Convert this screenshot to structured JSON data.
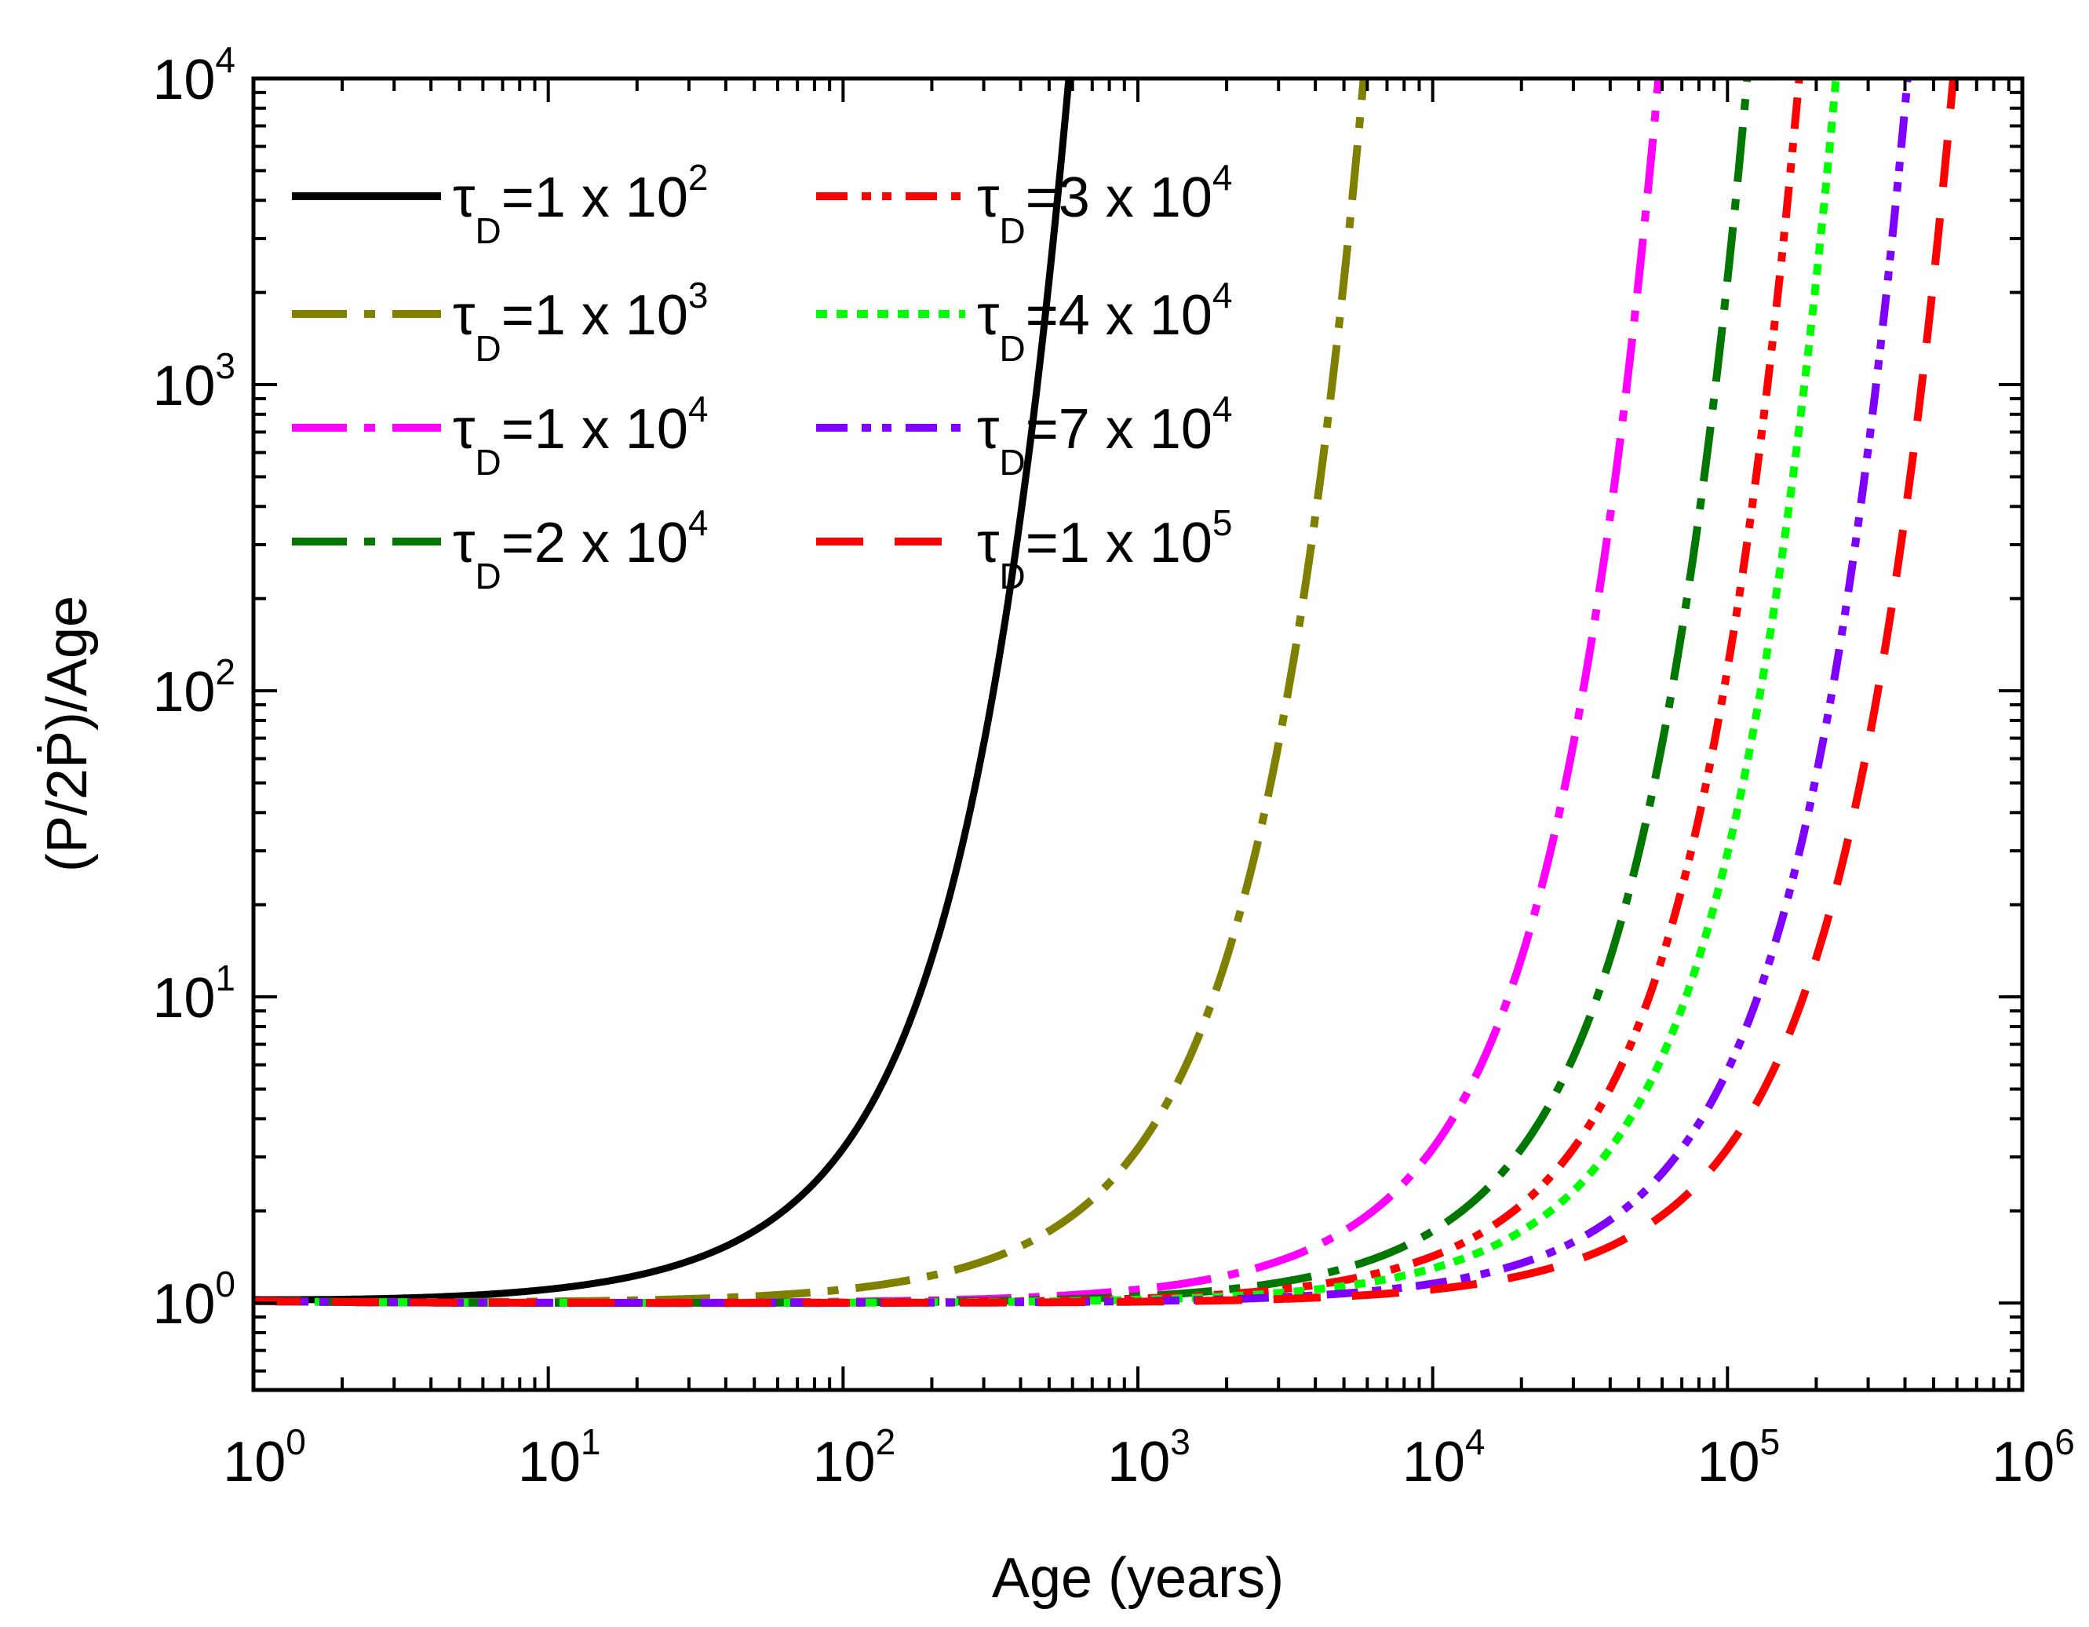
{
  "chart_data": {
    "type": "line",
    "title": "",
    "xlabel": "Age (years)",
    "ylabel": "(P/2Ṗ)/Age",
    "xscale": "log",
    "yscale": "log",
    "xlim": [
      1,
      1000000
    ],
    "ylim": [
      0.52,
      10000
    ],
    "grid": false,
    "legend_position": "top-left",
    "x_ticks": [
      {
        "value": 1,
        "base": "10",
        "exp": "0"
      },
      {
        "value": 10,
        "base": "10",
        "exp": "1"
      },
      {
        "value": 100,
        "base": "10",
        "exp": "2"
      },
      {
        "value": 1000,
        "base": "10",
        "exp": "3"
      },
      {
        "value": 10000,
        "base": "10",
        "exp": "4"
      },
      {
        "value": 100000,
        "base": "10",
        "exp": "5"
      },
      {
        "value": 1000000,
        "base": "10",
        "exp": "6"
      }
    ],
    "y_ticks": [
      {
        "value": 1,
        "base": "10",
        "exp": "0"
      },
      {
        "value": 10,
        "base": "10",
        "exp": "1"
      },
      {
        "value": 100,
        "base": "10",
        "exp": "2"
      },
      {
        "value": 1000,
        "base": "10",
        "exp": "3"
      },
      {
        "value": 10000,
        "base": "10",
        "exp": "4"
      }
    ],
    "series": [
      {
        "name": "τD=1 x 10^2",
        "tau": 100,
        "label_main": "τ",
        "label_sub": "D",
        "label_mid": "=1 x 10",
        "label_sup": "2",
        "color": "#000000",
        "dash": ""
      },
      {
        "name": "τD=1 x 10^3",
        "tau": 1000,
        "label_main": "τ",
        "label_sub": "D",
        "label_mid": "=1 x 10",
        "label_sup": "3",
        "color": "#808000",
        "dash": "70 22 14 22"
      },
      {
        "name": "τD=1 x 10^4",
        "tau": 10000,
        "label_main": "τ",
        "label_sub": "D",
        "label_mid": "=1 x 10",
        "label_sup": "4",
        "color": "#ff00ff",
        "dash": "70 22 14 22"
      },
      {
        "name": "τD=2 x 10^4",
        "tau": 20000,
        "label_main": "τ",
        "label_sub": "D",
        "label_mid": "=2 x 10",
        "label_sup": "4",
        "color": "#007700",
        "dash": "70 22 14 22"
      },
      {
        "name": "τD=3 x 10^4",
        "tau": 30000,
        "label_main": "τ",
        "label_sub": "D",
        "label_mid": "=3 x 10",
        "label_sup": "4",
        "color": "#ff0000",
        "dash": "40 18 12 14 12 18"
      },
      {
        "name": "τD=4 x 10^4",
        "tau": 40000,
        "label_main": "τ",
        "label_sub": "D",
        "label_mid": "=4 x 10",
        "label_sup": "4",
        "color": "#00ff00",
        "dash": "14 12"
      },
      {
        "name": "τD=7 x 10^4",
        "tau": 70000,
        "label_main": "τ",
        "label_sub": "D",
        "label_mid": "=7 x 10",
        "label_sup": "4",
        "color": "#7f00ff",
        "dash": "40 18 12 14 12 18"
      },
      {
        "name": "τD=1 x 10^5",
        "tau": 100000,
        "label_main": "τ",
        "label_sub": "D",
        "label_mid": "=1 x 10",
        "label_sup": "5",
        "color": "#ff0000",
        "dash": "60 40"
      }
    ],
    "legend_columns": [
      [
        0,
        1,
        2,
        3
      ],
      [
        4,
        5,
        6,
        7
      ]
    ]
  }
}
